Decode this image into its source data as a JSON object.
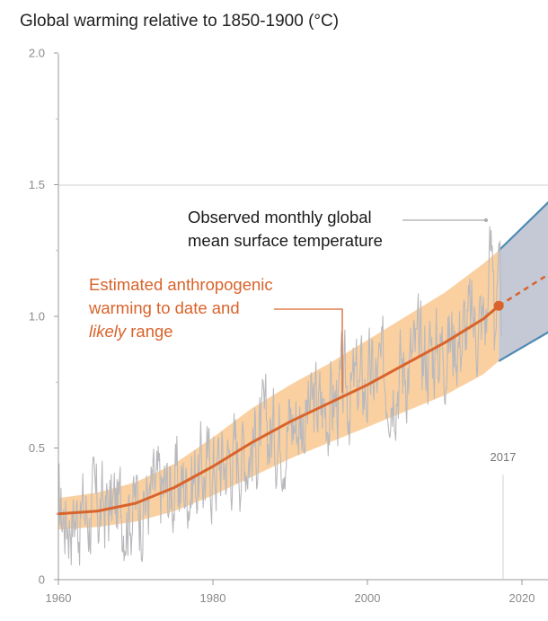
{
  "chart_data": {
    "type": "line",
    "title": "Global warming relative to 1850-1900 (°C)",
    "xlim": [
      1960,
      2024
    ],
    "ylim": [
      0,
      2.0
    ],
    "x_ticks": [
      "1960",
      "1980",
      "2000",
      "2020"
    ],
    "y_ticks": [
      "0",
      "0.5",
      "1.0",
      "1.5",
      "2.0"
    ],
    "grid": "horizontal line at 1.5",
    "marker_year": "2017",
    "annotations": {
      "observed": [
        "Observed monthly global",
        "mean surface temperature"
      ],
      "anthropogenic_line1": "Estimated anthropogenic",
      "anthropogenic_line2": "warming to date and",
      "anthropogenic_likely": "likely",
      "anthropogenic_range": " range"
    },
    "series": [
      {
        "role": "estimated anthropogenic warming",
        "x": [
          1960,
          1965,
          1970,
          1975,
          1980,
          1985,
          1990,
          1995,
          2000,
          2005,
          2010,
          2015,
          2017
        ],
        "y": [
          0.25,
          0.26,
          0.29,
          0.35,
          0.43,
          0.52,
          0.6,
          0.67,
          0.74,
          0.82,
          0.9,
          0.99,
          1.04
        ]
      },
      {
        "role": "likely range lower",
        "x": [
          1960,
          1965,
          1970,
          1975,
          1980,
          1985,
          1990,
          1995,
          2000,
          2005,
          2010,
          2015,
          2017
        ],
        "y": [
          0.19,
          0.2,
          0.22,
          0.26,
          0.32,
          0.39,
          0.46,
          0.52,
          0.58,
          0.64,
          0.7,
          0.78,
          0.83
        ]
      },
      {
        "role": "likely range upper",
        "x": [
          1960,
          1965,
          1970,
          1975,
          1980,
          1985,
          1990,
          1995,
          2000,
          2005,
          2010,
          2015,
          2017
        ],
        "y": [
          0.31,
          0.33,
          0.37,
          0.44,
          0.54,
          0.65,
          0.74,
          0.82,
          0.91,
          1.0,
          1.09,
          1.2,
          1.25
        ]
      },
      {
        "role": "projection central (dashed)",
        "x": [
          2017,
          2024
        ],
        "y": [
          1.04,
          1.17
        ]
      },
      {
        "role": "projection range",
        "x": [
          2017,
          2024
        ],
        "y_lower": [
          0.83,
          0.95
        ],
        "y_upper": [
          1.25,
          1.45
        ]
      }
    ],
    "colors": {
      "central": "#d9632b",
      "band": "#f9c88f",
      "observed": "#b9b9bd",
      "projection_fill": "#c5c9d6",
      "projection_edge": "#4f8ab3"
    }
  }
}
